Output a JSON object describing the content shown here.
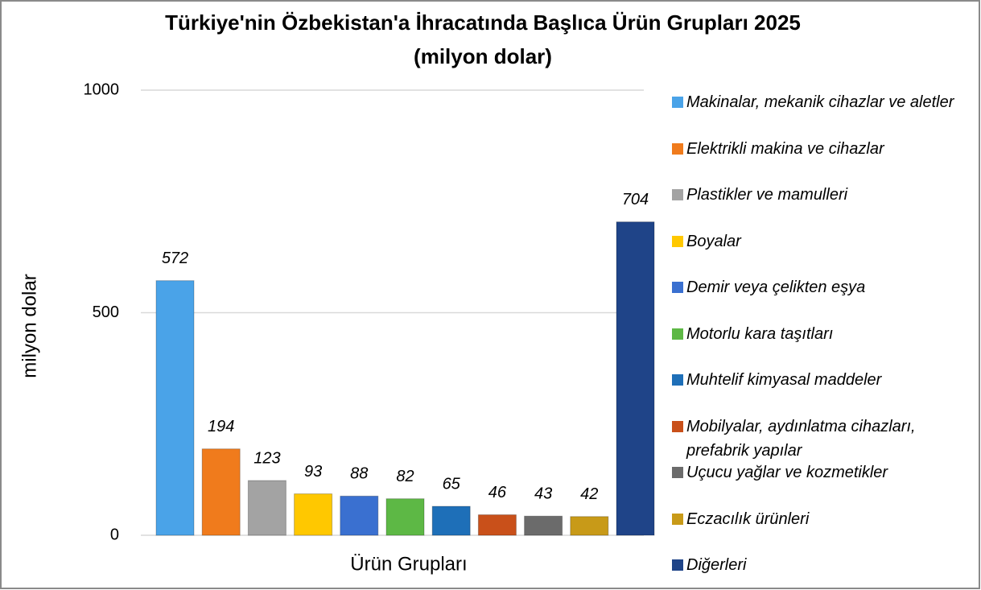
{
  "chart_data": {
    "type": "bar",
    "title": "Türkiye'nin Özbekistan'a İhracatında Başlıca Ürün Grupları 2025",
    "subtitle": "(milyon dolar)",
    "x_label": "Ürün Grupları",
    "y_label": "milyon dolar",
    "categories": [
      null
    ],
    "series": [
      {
        "name": "Makinalar, mekanik cihazlar ve aletler",
        "color": "#4aa3e8",
        "values": [
          572
        ]
      },
      {
        "name": "Elektrikli makina ve cihazlar",
        "color": "#f07b1c",
        "values": [
          194
        ]
      },
      {
        "name": "Plastikler ve mamulleri",
        "color": "#a3a3a3",
        "values": [
          123
        ]
      },
      {
        "name": "Boyalar",
        "color": "#ffc800",
        "values": [
          93
        ]
      },
      {
        "name": "Demir veya çelikten eşya",
        "color": "#3a70d0",
        "values": [
          88
        ]
      },
      {
        "name": "Motorlu kara taşıtları",
        "color": "#5db845",
        "values": [
          82
        ]
      },
      {
        "name": "Muhtelif kimyasal maddeler",
        "color": "#1e6fb8",
        "values": [
          65
        ]
      },
      {
        "name": "Mobilyalar, aydınlatma cihazları, prefabrik yapılar",
        "color": "#c9501a",
        "values": [
          46
        ]
      },
      {
        "name": "Uçucu yağlar ve kozmetikler",
        "color": "#6b6b6b",
        "values": [
          43
        ]
      },
      {
        "name": "Eczacılık ürünleri",
        "color": "#c89a18",
        "values": [
          42
        ]
      },
      {
        "name": "Diğerleri",
        "color": "#1f4488",
        "values": [
          704
        ]
      }
    ],
    "ylim": [
      0,
      1000
    ],
    "yticks": [
      0,
      500,
      1000
    ],
    "grid": true,
    "legend": "right"
  }
}
